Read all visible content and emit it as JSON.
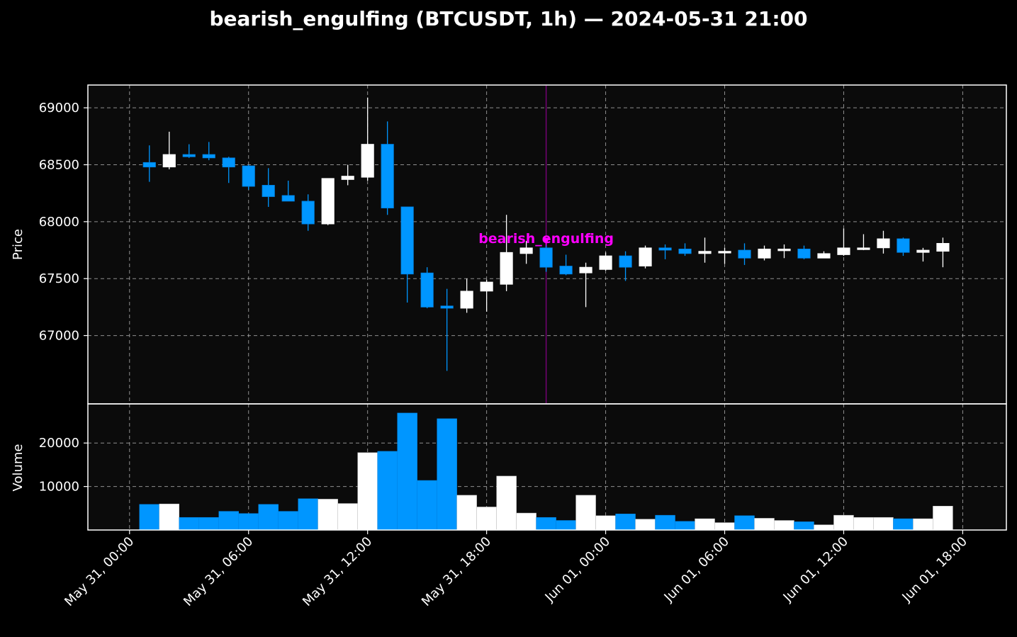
{
  "chart_data": {
    "type": "candlestick",
    "title": "bearish_engulfing (BTCUSDT, 1h) — 2024-05-31 21:00",
    "price_ylabel": "Price",
    "volume_ylabel": "Volume",
    "colors": {
      "up": "#ffffff",
      "down": "#0096ff",
      "background": "#0b0b0b",
      "annotation": "#ff00ff",
      "marker_line": "#800080"
    },
    "grid": true,
    "price_ylim": [
      66400,
      69200
    ],
    "volume_ylim": [
      0,
      29000
    ],
    "price_yticks": [
      {
        "value": 67000,
        "label": "67000"
      },
      {
        "value": 67500,
        "label": "67500"
      },
      {
        "value": 68000,
        "label": "68000"
      },
      {
        "value": 68500,
        "label": "68500"
      },
      {
        "value": 69000,
        "label": "69000"
      }
    ],
    "volume_yticks": [
      {
        "value": 10000,
        "label": "10000"
      },
      {
        "value": 20000,
        "label": "20000"
      }
    ],
    "x_range_hours": [
      -2.1,
      44.2
    ],
    "x_ticks": [
      {
        "hour": 0,
        "label": "May 31, 00:00"
      },
      {
        "hour": 6,
        "label": "May 31, 06:00"
      },
      {
        "hour": 12,
        "label": "May 31, 12:00"
      },
      {
        "hour": 18,
        "label": "May 31, 18:00"
      },
      {
        "hour": 24,
        "label": "Jun 01, 00:00"
      },
      {
        "hour": 30,
        "label": "Jun 01, 06:00"
      },
      {
        "hour": 36,
        "label": "Jun 01, 12:00"
      },
      {
        "hour": 42,
        "label": "Jun 01, 18:00"
      }
    ],
    "annotation": {
      "hour": 21,
      "text": "bearish_engulfing",
      "price": 67800
    },
    "candles": [
      {
        "hour": 1,
        "open": 68520,
        "high": 68670,
        "low": 68350,
        "close": 68480,
        "volume": 5900
      },
      {
        "hour": 2,
        "open": 68480,
        "high": 68790,
        "low": 68460,
        "close": 68590,
        "volume": 6000
      },
      {
        "hour": 3,
        "open": 68590,
        "high": 68680,
        "low": 68560,
        "close": 68570,
        "volume": 2900
      },
      {
        "hour": 4,
        "open": 68590,
        "high": 68700,
        "low": 68540,
        "close": 68560,
        "volume": 2900
      },
      {
        "hour": 5,
        "open": 68560,
        "high": 68570,
        "low": 68340,
        "close": 68480,
        "volume": 4300
      },
      {
        "hour": 6,
        "open": 68490,
        "high": 68500,
        "low": 68280,
        "close": 68310,
        "volume": 3800
      },
      {
        "hour": 7,
        "open": 68320,
        "high": 68470,
        "low": 68130,
        "close": 68220,
        "volume": 5900
      },
      {
        "hour": 8,
        "open": 68230,
        "high": 68360,
        "low": 68180,
        "close": 68180,
        "volume": 4300
      },
      {
        "hour": 9,
        "open": 68180,
        "high": 68240,
        "low": 67920,
        "close": 67980,
        "volume": 7200
      },
      {
        "hour": 10,
        "open": 67980,
        "high": 68380,
        "low": 67970,
        "close": 68380,
        "volume": 7100
      },
      {
        "hour": 11,
        "open": 68370,
        "high": 68500,
        "low": 68320,
        "close": 68400,
        "volume": 6100
      },
      {
        "hour": 12,
        "open": 68390,
        "high": 69090,
        "low": 68360,
        "close": 68680,
        "volume": 17800
      },
      {
        "hour": 13,
        "open": 68680,
        "high": 68880,
        "low": 68060,
        "close": 68120,
        "volume": 18100
      },
      {
        "hour": 14,
        "open": 68130,
        "high": 68130,
        "low": 67290,
        "close": 67540,
        "volume": 26900
      },
      {
        "hour": 15,
        "open": 67550,
        "high": 67600,
        "low": 67240,
        "close": 67250,
        "volume": 11400
      },
      {
        "hour": 16,
        "open": 67260,
        "high": 67410,
        "low": 66690,
        "close": 67240,
        "volume": 25600
      },
      {
        "hour": 17,
        "open": 67240,
        "high": 67500,
        "low": 67200,
        "close": 67390,
        "volume": 8000
      },
      {
        "hour": 18,
        "open": 67390,
        "high": 67490,
        "low": 67210,
        "close": 67470,
        "volume": 5300
      },
      {
        "hour": 19,
        "open": 67450,
        "high": 68060,
        "low": 67390,
        "close": 67730,
        "volume": 12400
      },
      {
        "hour": 20,
        "open": 67720,
        "high": 67830,
        "low": 67630,
        "close": 67770,
        "volume": 3900
      },
      {
        "hour": 21,
        "open": 67770,
        "high": 67790,
        "low": 67560,
        "close": 67600,
        "volume": 2900
      },
      {
        "hour": 22,
        "open": 67610,
        "high": 67710,
        "low": 67530,
        "close": 67540,
        "volume": 2200
      },
      {
        "hour": 23,
        "open": 67550,
        "high": 67640,
        "low": 67250,
        "close": 67600,
        "volume": 8000
      },
      {
        "hour": 24,
        "open": 67580,
        "high": 67730,
        "low": 67570,
        "close": 67700,
        "volume": 3300
      },
      {
        "hour": 25,
        "open": 67700,
        "high": 67740,
        "low": 67480,
        "close": 67600,
        "volume": 3700
      },
      {
        "hour": 26,
        "open": 67610,
        "high": 67790,
        "low": 67590,
        "close": 67770,
        "volume": 2500
      },
      {
        "hour": 27,
        "open": 67770,
        "high": 67800,
        "low": 67670,
        "close": 67750,
        "volume": 3400
      },
      {
        "hour": 28,
        "open": 67760,
        "high": 67810,
        "low": 67700,
        "close": 67720,
        "volume": 2000
      },
      {
        "hour": 29,
        "open": 67720,
        "high": 67860,
        "low": 67640,
        "close": 67740,
        "volume": 2600
      },
      {
        "hour": 30,
        "open": 67730,
        "high": 67770,
        "low": 67630,
        "close": 67740,
        "volume": 1700
      },
      {
        "hour": 31,
        "open": 67750,
        "high": 67810,
        "low": 67620,
        "close": 67680,
        "volume": 3300
      },
      {
        "hour": 32,
        "open": 67680,
        "high": 67790,
        "low": 67660,
        "close": 67760,
        "volume": 2700
      },
      {
        "hour": 33,
        "open": 67750,
        "high": 67800,
        "low": 67680,
        "close": 67760,
        "volume": 2200
      },
      {
        "hour": 34,
        "open": 67760,
        "high": 67790,
        "low": 67670,
        "close": 67680,
        "volume": 1900
      },
      {
        "hour": 35,
        "open": 67680,
        "high": 67740,
        "low": 67680,
        "close": 67720,
        "volume": 1200
      },
      {
        "hour": 36,
        "open": 67710,
        "high": 67940,
        "low": 67700,
        "close": 67770,
        "volume": 3400
      },
      {
        "hour": 37,
        "open": 67760,
        "high": 67890,
        "low": 67750,
        "close": 67770,
        "volume": 2900
      },
      {
        "hour": 38,
        "open": 67770,
        "high": 67920,
        "low": 67720,
        "close": 67850,
        "volume": 2900
      },
      {
        "hour": 39,
        "open": 67850,
        "high": 67860,
        "low": 67700,
        "close": 67730,
        "volume": 2600
      },
      {
        "hour": 40,
        "open": 67730,
        "high": 67770,
        "low": 67650,
        "close": 67750,
        "volume": 2600
      },
      {
        "hour": 41,
        "open": 67740,
        "high": 67860,
        "low": 67600,
        "close": 67810,
        "volume": 5500
      }
    ]
  }
}
